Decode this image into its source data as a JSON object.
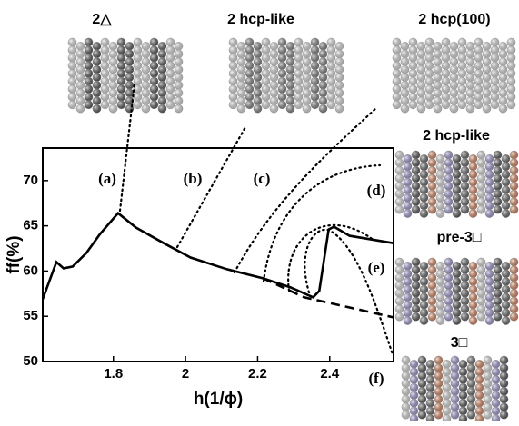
{
  "chart_data": {
    "type": "line",
    "xlabel": "h(1/ϕ)",
    "ylabel": "ff(%)",
    "xlim": [
      1.604,
      2.577
    ],
    "ylim": [
      50,
      73.6
    ],
    "xticks": [
      1.8,
      2.0,
      2.2,
      2.4
    ],
    "yticks": [
      50,
      55,
      60,
      65,
      70
    ],
    "series": [
      {
        "x": [
          1.604,
          1.642,
          1.662,
          1.687,
          1.725,
          1.763,
          1.813,
          1.863,
          1.939,
          2.014,
          2.115,
          2.215,
          2.291,
          2.354,
          2.371,
          2.397,
          2.412,
          2.455,
          2.575
        ],
        "values": [
          56.9,
          61.0,
          60.3,
          60.5,
          62.0,
          64.1,
          66.4,
          64.8,
          63.1,
          61.5,
          60.2,
          59.2,
          58.2,
          57.1,
          57.8,
          64.6,
          64.9,
          63.9,
          63.1
        ],
        "color": "#000000",
        "style": "solid"
      },
      {
        "x": [
          2.215,
          2.329,
          2.575
        ],
        "values": [
          59.2,
          57.1,
          54.9
        ],
        "color": "#000000",
        "style": "dashed"
      }
    ],
    "annotations": [
      "(a)",
      "(b)",
      "(c)",
      "(d)",
      "(e)",
      "(f)"
    ],
    "panels": [
      "2△",
      "2 hcp-like",
      "2 hcp(100)",
      "2 hcp-like",
      "pre-3□",
      "3□"
    ]
  }
}
